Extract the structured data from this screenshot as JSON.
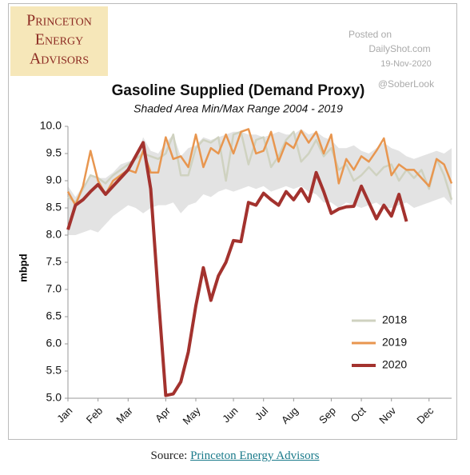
{
  "logo": [
    "Princeton",
    "Energy",
    "Advisors"
  ],
  "watermark": {
    "lines": [
      "Posted on",
      "DailyShot.com",
      "19-Nov-2020"
    ],
    "handle": "@SoberLook"
  },
  "source": {
    "prefix": "Source:",
    "link": "Princeton Energy Advisors"
  },
  "chart_data": {
    "type": "line",
    "title": "Gasoline Supplied (Demand Proxy)",
    "subtitle": "Shaded Area Min/Max Range 2004 - 2019",
    "y_label": "mbpd",
    "categories": [
      "Jan",
      null,
      null,
      null,
      "Feb",
      null,
      null,
      null,
      "Mar",
      null,
      null,
      null,
      null,
      "Apr",
      null,
      null,
      null,
      "May",
      null,
      null,
      null,
      null,
      "Jun",
      null,
      null,
      null,
      "Jul",
      null,
      null,
      null,
      "Aug",
      null,
      null,
      null,
      null,
      "Sep",
      null,
      null,
      null,
      "Oct",
      null,
      null,
      null,
      "Nov",
      null,
      null,
      null,
      null,
      "Dec",
      null,
      null,
      null
    ],
    "ylim": [
      5,
      10
    ],
    "yticks": [
      {
        "value": 5,
        "label": "5.0"
      },
      {
        "value": 5.5,
        "label": "5.5"
      },
      {
        "value": 6,
        "label": "6.0"
      },
      {
        "value": 6.5,
        "label": "6.5"
      },
      {
        "value": 7,
        "label": "7.0"
      },
      {
        "value": 7.5,
        "label": "7.5"
      },
      {
        "value": 8,
        "label": "8.0"
      },
      {
        "value": 8.5,
        "label": "8.5"
      },
      {
        "value": 9,
        "label": "9.0"
      },
      {
        "value": 9.5,
        "label": "9.5"
      },
      {
        "value": 10,
        "label": "10.0"
      }
    ],
    "grid": false,
    "shaded_range": {
      "color": "#e3e3e3",
      "min": [
        8.0,
        8.0,
        8.05,
        8.1,
        8.05,
        8.2,
        8.35,
        8.45,
        8.55,
        8.5,
        8.4,
        8.5,
        8.55,
        8.55,
        8.6,
        8.4,
        8.55,
        8.6,
        8.75,
        8.7,
        8.8,
        8.85,
        8.8,
        8.85,
        8.9,
        8.85,
        8.9,
        8.8,
        8.85,
        8.9,
        8.85,
        8.9,
        8.8,
        8.75,
        8.6,
        8.6,
        8.5,
        8.6,
        8.55,
        8.5,
        8.55,
        8.6,
        8.5,
        8.5,
        8.55,
        8.6,
        8.5,
        8.55,
        8.6,
        8.65,
        8.7,
        8.55
      ],
      "max": [
        8.9,
        8.7,
        8.9,
        9.1,
        9.05,
        9.05,
        9.15,
        9.3,
        9.35,
        9.4,
        9.8,
        9.55,
        9.5,
        9.7,
        9.85,
        9.45,
        9.6,
        9.65,
        9.8,
        9.75,
        9.8,
        9.85,
        9.9,
        9.9,
        9.85,
        9.85,
        9.8,
        9.85,
        9.9,
        9.85,
        9.85,
        9.95,
        9.85,
        9.9,
        9.8,
        9.75,
        9.6,
        9.6,
        9.65,
        9.55,
        9.5,
        9.6,
        9.7,
        9.6,
        9.55,
        9.45,
        9.4,
        9.45,
        9.5,
        9.55,
        9.5,
        9.6
      ]
    },
    "series": [
      {
        "name": "2018",
        "color": "#cfd2c0",
        "values": [
          8.7,
          8.6,
          8.85,
          9.1,
          9.05,
          8.95,
          9.1,
          9.2,
          9.3,
          9.4,
          9.5,
          9.45,
          9.4,
          9.5,
          9.85,
          9.1,
          9.1,
          9.6,
          9.75,
          9.7,
          9.8,
          9.0,
          9.85,
          9.9,
          9.3,
          9.75,
          9.8,
          9.25,
          9.45,
          9.75,
          9.9,
          9.35,
          9.5,
          9.75,
          9.45,
          9.6,
          9.2,
          9.3,
          9.0,
          9.1,
          9.25,
          9.1,
          9.25,
          9.3,
          9.0,
          9.2,
          9.05,
          9.2,
          8.85,
          9.4,
          9.1,
          8.65
        ]
      },
      {
        "name": "2019",
        "color": "#e8964f",
        "values": [
          8.8,
          8.55,
          8.9,
          9.55,
          9.0,
          8.75,
          9.0,
          9.1,
          9.2,
          9.15,
          9.55,
          9.15,
          9.15,
          9.8,
          9.4,
          9.45,
          9.25,
          9.85,
          9.25,
          9.6,
          9.5,
          9.85,
          9.5,
          9.9,
          9.95,
          9.5,
          9.55,
          9.9,
          9.35,
          9.7,
          9.6,
          9.92,
          9.7,
          9.9,
          9.5,
          9.85,
          8.95,
          9.4,
          9.2,
          9.45,
          9.35,
          9.55,
          9.78,
          9.1,
          9.3,
          9.2,
          9.2,
          9.05,
          8.9,
          9.4,
          9.3,
          8.95
        ]
      },
      {
        "name": "2020",
        "color": "#a3322e",
        "values": [
          8.1,
          8.55,
          8.65,
          8.8,
          8.93,
          8.75,
          8.9,
          9.05,
          9.2,
          9.45,
          9.7,
          8.85,
          6.9,
          5.05,
          5.08,
          5.3,
          5.85,
          6.7,
          7.4,
          6.8,
          7.25,
          7.5,
          7.9,
          7.88,
          8.6,
          8.55,
          8.77,
          8.65,
          8.55,
          8.8,
          8.65,
          8.85,
          8.62,
          9.15,
          8.8,
          8.4,
          8.48,
          8.52,
          8.53,
          8.9,
          8.6,
          8.3,
          8.55,
          8.35,
          8.75,
          8.25,
          null,
          null,
          null,
          null,
          null,
          null
        ]
      }
    ]
  }
}
